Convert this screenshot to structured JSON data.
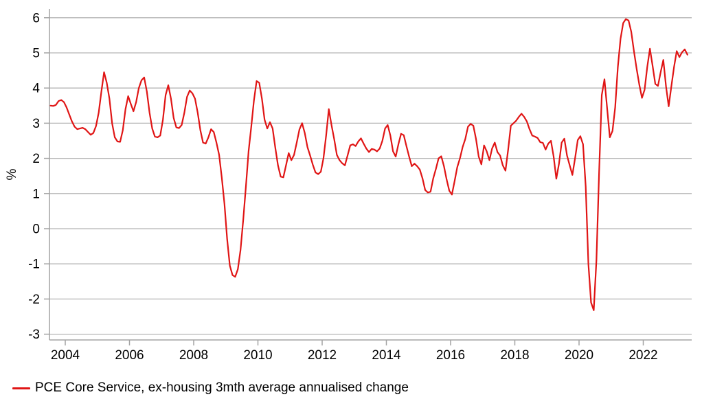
{
  "chart_data": {
    "type": "line",
    "title": "",
    "xlabel": "",
    "ylabel": "%",
    "grid": "horizontal-only",
    "legend_position": "bottom-left",
    "ylim": [
      -3,
      6
    ],
    "yticks": [
      6,
      5,
      4,
      3,
      2,
      1,
      0,
      -1,
      -2,
      -3
    ],
    "xticks": [
      2004,
      2006,
      2008,
      2010,
      2012,
      2014,
      2016,
      2018,
      2020,
      2022
    ],
    "colors": {
      "line": "#e01515",
      "gridline": "#b5b5b5",
      "axis": "#a3a3a3",
      "tick_label": "#000000"
    },
    "series": [
      {
        "name": "PCE Core Service, ex-housing 3mth average annualised change",
        "color": "#e01515",
        "frequency": "monthly",
        "start_year_decimal": 2003.5417,
        "values": [
          3.5,
          3.49,
          3.52,
          3.63,
          3.66,
          3.6,
          3.45,
          3.25,
          3.05,
          2.9,
          2.83,
          2.85,
          2.87,
          2.83,
          2.75,
          2.67,
          2.72,
          2.92,
          3.3,
          3.9,
          4.45,
          4.15,
          3.7,
          3.0,
          2.6,
          2.48,
          2.47,
          2.8,
          3.4,
          3.77,
          3.55,
          3.34,
          3.6,
          4.0,
          4.22,
          4.3,
          3.9,
          3.3,
          2.85,
          2.62,
          2.6,
          2.65,
          3.1,
          3.8,
          4.08,
          3.7,
          3.15,
          2.88,
          2.86,
          2.95,
          3.3,
          3.75,
          3.93,
          3.85,
          3.7,
          3.3,
          2.8,
          2.45,
          2.42,
          2.6,
          2.83,
          2.75,
          2.45,
          2.1,
          1.45,
          0.7,
          -0.3,
          -1.05,
          -1.32,
          -1.37,
          -1.15,
          -0.6,
          0.25,
          1.2,
          2.2,
          2.9,
          3.65,
          4.2,
          4.15,
          3.7,
          3.1,
          2.85,
          3.03,
          2.85,
          2.3,
          1.8,
          1.48,
          1.46,
          1.8,
          2.15,
          1.95,
          2.1,
          2.45,
          2.82,
          3.0,
          2.72,
          2.32,
          2.08,
          1.82,
          1.6,
          1.55,
          1.62,
          2.0,
          2.65,
          3.4,
          2.95,
          2.55,
          2.1,
          1.95,
          1.86,
          1.8,
          2.08,
          2.37,
          2.4,
          2.35,
          2.48,
          2.57,
          2.42,
          2.28,
          2.18,
          2.27,
          2.25,
          2.2,
          2.28,
          2.5,
          2.85,
          2.95,
          2.65,
          2.2,
          2.05,
          2.4,
          2.7,
          2.66,
          2.35,
          2.05,
          1.78,
          1.85,
          1.78,
          1.68,
          1.43,
          1.1,
          1.03,
          1.05,
          1.43,
          1.7,
          2.0,
          2.06,
          1.78,
          1.4,
          1.08,
          0.97,
          1.35,
          1.75,
          2.0,
          2.32,
          2.55,
          2.9,
          2.98,
          2.93,
          2.55,
          2.05,
          1.83,
          2.37,
          2.2,
          1.95,
          2.28,
          2.45,
          2.18,
          2.08,
          1.8,
          1.65,
          2.25,
          2.93,
          3.0,
          3.07,
          3.18,
          3.27,
          3.18,
          3.05,
          2.83,
          2.65,
          2.62,
          2.58,
          2.46,
          2.44,
          2.25,
          2.42,
          2.5,
          2.05,
          1.42,
          1.85,
          2.45,
          2.56,
          2.08,
          1.8,
          1.53,
          2.0,
          2.52,
          2.63,
          2.4,
          1.2,
          -1.0,
          -2.1,
          -2.32,
          -0.9,
          1.6,
          3.8,
          4.25,
          3.42,
          2.6,
          2.78,
          3.45,
          4.6,
          5.4,
          5.85,
          5.96,
          5.92,
          5.6,
          5.05,
          4.55,
          4.1,
          3.72,
          3.95,
          4.6,
          5.12,
          4.63,
          4.12,
          4.06,
          4.45,
          4.8,
          4.05,
          3.48,
          4.05,
          4.6,
          5.05,
          4.88,
          5.02,
          5.1,
          4.95
        ]
      }
    ]
  }
}
